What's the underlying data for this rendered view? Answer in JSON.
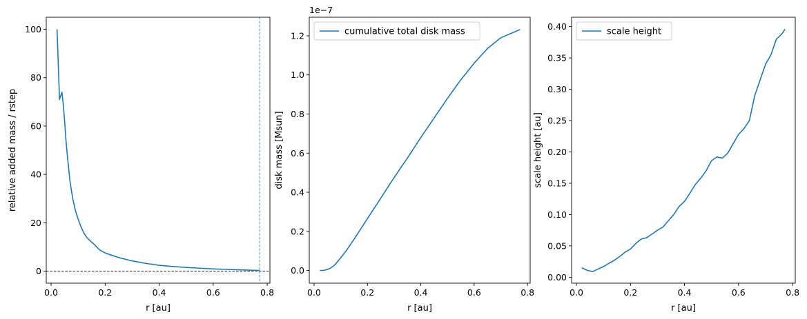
{
  "chart_data": [
    {
      "type": "line",
      "xlabel": "r [au]",
      "ylabel": "relative added mass / rstep",
      "xlim": [
        -0.018,
        0.81
      ],
      "ylim": [
        -5,
        105
      ],
      "xticks": [
        0.0,
        0.2,
        0.4,
        0.6,
        0.8
      ],
      "xtick_labels": [
        "0.0",
        "0.2",
        "0.4",
        "0.6",
        "0.8"
      ],
      "yticks": [
        0,
        20,
        40,
        60,
        80,
        100
      ],
      "ytick_labels": [
        "0",
        "20",
        "40",
        "60",
        "80",
        "100"
      ],
      "grid": false,
      "series": [
        {
          "color": "#1f77b4",
          "x": [
            0.022,
            0.031,
            0.04,
            0.045,
            0.05,
            0.055,
            0.06,
            0.07,
            0.08,
            0.09,
            0.1,
            0.11,
            0.12,
            0.13,
            0.14,
            0.15,
            0.16,
            0.18,
            0.2,
            0.22,
            0.25,
            0.3,
            0.35,
            0.4,
            0.45,
            0.5,
            0.55,
            0.6,
            0.65,
            0.7,
            0.74,
            0.772
          ],
          "y": [
            100,
            71,
            74,
            69,
            62,
            54,
            48,
            37,
            30,
            25,
            21.5,
            18.5,
            16,
            14.2,
            13,
            12,
            11,
            8.7,
            7.5,
            6.7,
            5.6,
            4.2,
            3.2,
            2.4,
            1.9,
            1.5,
            1.2,
            0.9,
            0.7,
            0.5,
            0.35,
            0.25
          ]
        }
      ],
      "hlines": [
        {
          "y": 0,
          "style": "dashed",
          "color": "#000000"
        }
      ],
      "vlines": [
        {
          "x": 0.772,
          "style": "dashed",
          "color": "#1f77b4"
        }
      ]
    },
    {
      "type": "line",
      "xlabel": "r [au]",
      "ylabel": "disk mass [Msun]",
      "offset_text": "1e−7",
      "xlim": [
        -0.018,
        0.81
      ],
      "ylim": [
        -6.5e-09,
        1.295e-07
      ],
      "xticks": [
        0.0,
        0.2,
        0.4,
        0.6,
        0.8
      ],
      "xtick_labels": [
        "0.0",
        "0.2",
        "0.4",
        "0.6",
        "0.8"
      ],
      "yticks": [
        0,
        2e-08,
        4e-08,
        6e-08,
        8e-08,
        1e-07,
        1.2e-07
      ],
      "ytick_labels": [
        "0.0",
        "0.2",
        "0.4",
        "0.6",
        "0.8",
        "1.0",
        "1.2"
      ],
      "grid": false,
      "legend": "top-left",
      "series": [
        {
          "name": "cumulative total disk mass",
          "color": "#1f77b4",
          "x": [
            0.022,
            0.03,
            0.04,
            0.05,
            0.06,
            0.07,
            0.08,
            0.1,
            0.12,
            0.15,
            0.2,
            0.25,
            0.3,
            0.35,
            0.4,
            0.45,
            0.5,
            0.55,
            0.6,
            0.65,
            0.7,
            0.772
          ],
          "y": [
            0,
            2e-11,
            1.5e-10,
            5e-10,
            1.1e-09,
            2e-09,
            3.2e-09,
            6.5e-09,
            1e-08,
            1.6e-08,
            2.65e-08,
            3.7e-08,
            4.75e-08,
            5.75e-08,
            6.8e-08,
            7.8e-08,
            8.8e-08,
            9.75e-08,
            1.06e-07,
            1.135e-07,
            1.19e-07,
            1.232e-07
          ]
        }
      ]
    },
    {
      "type": "line",
      "xlabel": "r [au]",
      "ylabel": "scale height [au]",
      "xlim": [
        -0.018,
        0.81
      ],
      "ylim": [
        -0.0095,
        0.415
      ],
      "xticks": [
        0.0,
        0.2,
        0.4,
        0.6,
        0.8
      ],
      "xtick_labels": [
        "0.0",
        "0.2",
        "0.4",
        "0.6",
        "0.8"
      ],
      "yticks": [
        0,
        0.05,
        0.1,
        0.15,
        0.2,
        0.25,
        0.3,
        0.35,
        0.4
      ],
      "ytick_labels": [
        "0.00",
        "0.05",
        "0.10",
        "0.15",
        "0.20",
        "0.25",
        "0.30",
        "0.35",
        "0.40"
      ],
      "grid": false,
      "legend": "top-left",
      "series": [
        {
          "name": "scale height",
          "color": "#1f77b4",
          "x": [
            0.02,
            0.04,
            0.06,
            0.08,
            0.1,
            0.12,
            0.14,
            0.16,
            0.18,
            0.2,
            0.22,
            0.24,
            0.26,
            0.28,
            0.3,
            0.32,
            0.34,
            0.36,
            0.38,
            0.4,
            0.42,
            0.44,
            0.46,
            0.48,
            0.5,
            0.52,
            0.54,
            0.56,
            0.58,
            0.6,
            0.62,
            0.64,
            0.66,
            0.68,
            0.7,
            0.72,
            0.74,
            0.76,
            0.772
          ],
          "y": [
            0.015,
            0.011,
            0.009,
            0.013,
            0.017,
            0.022,
            0.027,
            0.033,
            0.04,
            0.045,
            0.054,
            0.061,
            0.063,
            0.069,
            0.075,
            0.08,
            0.09,
            0.1,
            0.113,
            0.121,
            0.134,
            0.148,
            0.158,
            0.17,
            0.186,
            0.192,
            0.19,
            0.198,
            0.213,
            0.228,
            0.237,
            0.25,
            0.29,
            0.315,
            0.34,
            0.355,
            0.38,
            0.388,
            0.396
          ]
        }
      ]
    }
  ]
}
